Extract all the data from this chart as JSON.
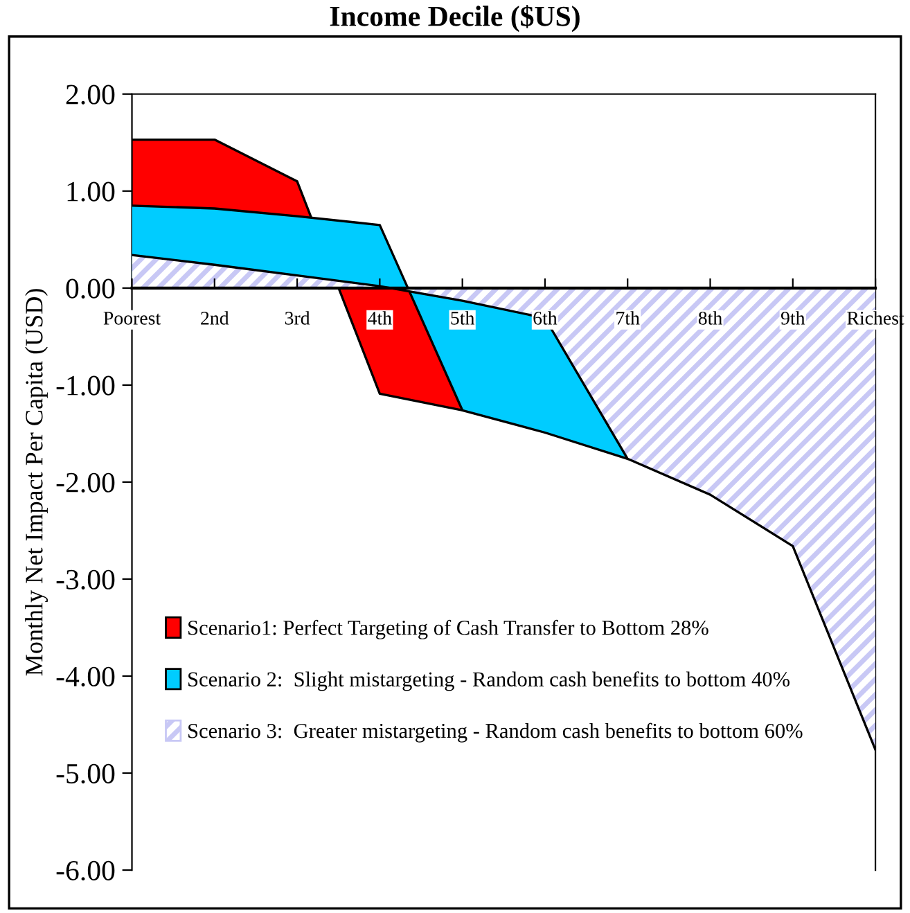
{
  "chart_data": {
    "type": "area",
    "title": "Income Decile ($US)",
    "ylabel": "Monthly Net Impact Per Capita (USD)",
    "categories": [
      "Poorest",
      "2nd",
      "3rd",
      "4th",
      "5th",
      "6th",
      "7th",
      "8th",
      "9th",
      "Richest"
    ],
    "series": [
      {
        "name": "Scenario1: Perfect Targeting of Cash Transfer to Bottom 28%",
        "color": "#ff0000",
        "values": [
          1.53,
          1.53,
          1.1,
          -1.09,
          -1.26,
          null,
          null,
          null,
          null,
          null
        ]
      },
      {
        "name": "Scenario 2:  Slight mistargeting - Random cash benefits to bottom 40%",
        "color": "#00ccff",
        "values": [
          0.85,
          0.82,
          0.74,
          0.65,
          -1.26,
          -1.49,
          -1.76,
          null,
          null,
          null
        ]
      },
      {
        "name": "Scenario 3:  Greater mistargeting - Random cash benefits to bottom 60%",
        "color": "#c8c8f5",
        "values": [
          0.34,
          0.24,
          0.13,
          0.02,
          -0.13,
          -0.31,
          -1.76,
          -2.13,
          -2.66,
          -4.76
        ]
      }
    ],
    "ylim": [
      -6,
      2
    ],
    "yticks": [
      {
        "value": -6,
        "label": "-6.00"
      },
      {
        "value": -5,
        "label": "-5.00"
      },
      {
        "value": -4,
        "label": "-4.00"
      },
      {
        "value": -3,
        "label": "-3.00"
      },
      {
        "value": -2,
        "label": "-2.00"
      },
      {
        "value": -1,
        "label": "-1.00"
      },
      {
        "value": 0,
        "label": "0.00"
      },
      {
        "value": 1,
        "label": "1.00"
      },
      {
        "value": 2,
        "label": "2.00"
      }
    ],
    "grid": false,
    "legend": "bottom left"
  }
}
